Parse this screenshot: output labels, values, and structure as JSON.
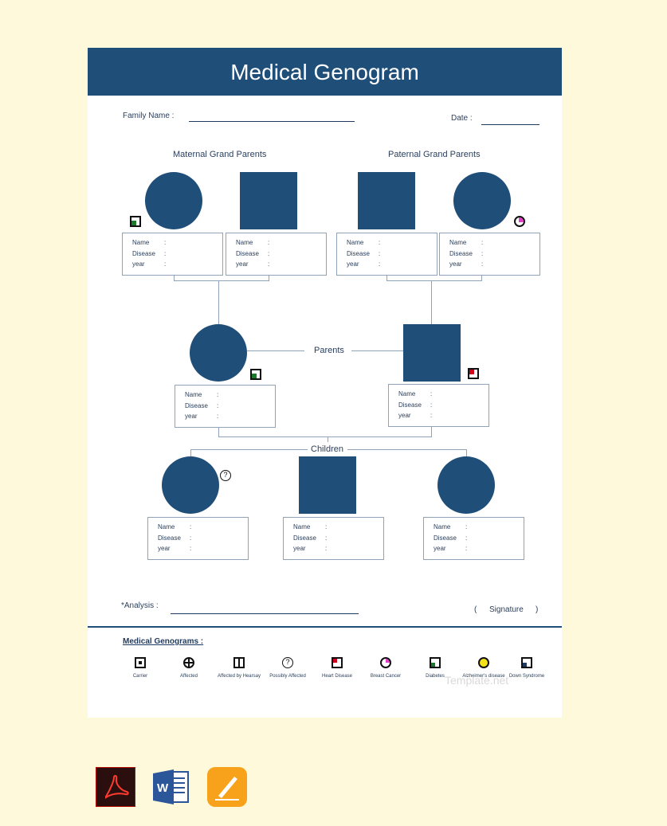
{
  "header": {
    "title": "Medical Genogram"
  },
  "form": {
    "family_name_label": "Family Name :",
    "date_label": "Date :",
    "analysis_label": "*Analysis :",
    "signature_label": "Signature",
    "signature_open": "(",
    "signature_close": ")"
  },
  "sections": {
    "maternal": "Maternal Grand Parents",
    "paternal": "Paternal Grand Parents",
    "parents": "Parents",
    "children": "Children"
  },
  "info_labels": {
    "name": "Name",
    "disease": "Disease",
    "year": "year",
    "colon": ":"
  },
  "legend": {
    "title": "Medical Genograms :",
    "items": [
      {
        "label": "Carrier",
        "icon": "carrier-icon"
      },
      {
        "label": "Affected",
        "icon": "affected-icon"
      },
      {
        "label": "Affected by Hearsay",
        "icon": "hearsay-icon"
      },
      {
        "label": "Possibly Affected",
        "icon": "possibly-affected-icon"
      },
      {
        "label": "Heart Disease",
        "icon": "heart-disease-icon"
      },
      {
        "label": "Breast Cancer",
        "icon": "breast-cancer-icon"
      },
      {
        "label": "Diabetes",
        "icon": "diabetes-icon"
      },
      {
        "label": "Alzheimer's disease",
        "icon": "alzheimers-icon"
      },
      {
        "label": "Down Syndrome",
        "icon": "down-syndrome-icon"
      }
    ]
  },
  "watermark": "Template.net",
  "colors": {
    "header": "#1f4e79",
    "shape": "#1f4e79",
    "background": "#fff9dc",
    "heart": "#d0021b",
    "breast": "#e040c8",
    "diabetes": "#1a7a2a",
    "alzheimer": "#f5e31a"
  },
  "file_icons": [
    "pdf-icon",
    "word-icon",
    "pages-icon"
  ]
}
